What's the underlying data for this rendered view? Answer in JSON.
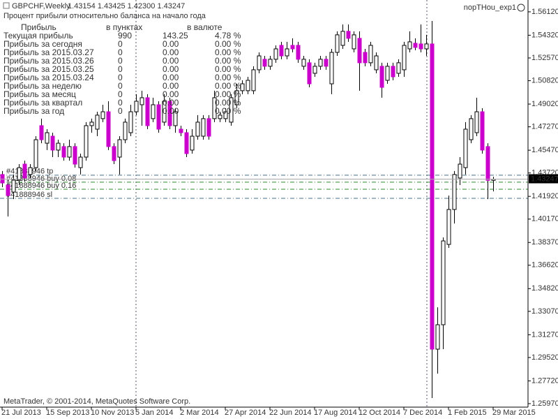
{
  "header": {
    "symbol": "GBPCHF,Weekly",
    "quote": "1.43154 1.43425 1.42300 1.43247",
    "subtitle": "Процент прибыли относительно баланса на начало года",
    "expert": "nopTHou_exp1"
  },
  "panel": {
    "headers": [
      "Прибыль",
      "в пунктах",
      "в валюте"
    ],
    "rows": [
      [
        "Текущая прибыль",
        "990",
        "143.25",
        "4.78 %"
      ],
      [
        "Прибыль за сегодня",
        "0",
        "0.00",
        "0.00 %"
      ],
      [
        "Прибыль за 2015.03.27",
        "0",
        "0.00",
        "0.00 %"
      ],
      [
        "Прибыль за 2015.03.26",
        "0",
        "0.00",
        "0.00 %"
      ],
      [
        "Прибыль за 2015.03.25",
        "0",
        "0.00",
        "0.00 %"
      ],
      [
        "Прибыль за 2015.03.24",
        "0",
        "0.00",
        "0.00 %"
      ],
      [
        "Прибыль за неделю",
        "0",
        "0.00",
        "0.00 %"
      ],
      [
        "Прибыль за месяц",
        "0",
        "0.00",
        "0.00 %"
      ],
      [
        "Прибыль за квартал",
        "0",
        "0.00",
        "0.00 %"
      ],
      [
        "Прибыль за год",
        "0",
        "0.00",
        "0.00 %"
      ]
    ],
    "highlight_color": "#008000",
    "color": "#7f7f7f"
  },
  "footer": "MetaTrader, © 2001-2014, MetaQuotes Software Corp.",
  "chart_data": {
    "type": "candlestick",
    "up_color": "#ffffff",
    "down_color": "#cc00cc",
    "categories": [
      "21 Jul 2013",
      null,
      null,
      null,
      null,
      null,
      null,
      null,
      "15 Sep 2013",
      null,
      null,
      null,
      null,
      null,
      null,
      null,
      "10 Nov 2013",
      null,
      null,
      null,
      null,
      null,
      null,
      null,
      "5 Jan 2014",
      null,
      null,
      null,
      null,
      null,
      null,
      null,
      "2 Mar 2014",
      null,
      null,
      null,
      null,
      null,
      null,
      null,
      "27 Apr 2014",
      null,
      null,
      null,
      null,
      null,
      null,
      null,
      "22 Jun 2014",
      null,
      null,
      null,
      null,
      null,
      null,
      null,
      "17 Aug 2014",
      null,
      null,
      null,
      null,
      null,
      null,
      null,
      "12 Oct 2014",
      null,
      null,
      null,
      null,
      null,
      null,
      null,
      "7 Dec 2014",
      null,
      null,
      null,
      null,
      null,
      null,
      null,
      "1 Feb 2015",
      null,
      null,
      null,
      null,
      null,
      null,
      null,
      "29 Mar 2015"
    ],
    "open": [
      1.436,
      1.4279,
      1.4225,
      1.4317,
      1.444,
      1.436,
      1.4413,
      1.4736,
      1.4601,
      1.4655,
      1.4548,
      1.4575,
      1.4494,
      1.4575,
      1.4413,
      1.4494,
      1.4736,
      1.4709,
      1.479,
      1.4843,
      1.4575,
      1.4494,
      1.4628,
      1.4682,
      1.4843,
      1.4897,
      1.4951,
      1.479,
      1.4897,
      1.4763,
      1.4924,
      1.4736,
      1.4709,
      1.4682,
      1.4548,
      1.4655,
      1.4655,
      1.479,
      1.479,
      1.479,
      1.479,
      1.4763,
      1.4897,
      1.5005,
      1.5005,
      1.5005,
      1.5166,
      1.5247,
      1.5193,
      1.5247,
      1.5354,
      1.5273,
      1.5354,
      1.5354,
      1.5193,
      1.522,
      1.5139,
      1.5193,
      1.5247,
      1.5058,
      1.53,
      1.5354,
      1.5462,
      1.5327,
      1.5408,
      1.53,
      1.522,
      1.5166,
      1.5193,
      1.5085,
      1.5193,
      1.5139,
      1.5166,
      1.5327,
      1.537,
      1.5365,
      1.5327,
      1.5365,
      1.3016,
      1.3204,
      1.3822,
      1.4091,
      1.4333,
      1.4413,
      1.4628,
      1.4682,
      1.4843,
      1.4575,
      1.43154
    ],
    "high": [
      1.4387,
      1.4317,
      1.436,
      1.444,
      1.4467,
      1.444,
      1.4655,
      1.479,
      1.4709,
      1.4682,
      1.4628,
      1.4601,
      1.4628,
      1.4601,
      1.4521,
      1.4763,
      1.479,
      1.4843,
      1.4897,
      1.4924,
      1.4601,
      1.4655,
      1.479,
      1.4897,
      1.4978,
      1.5005,
      1.4978,
      1.4951,
      1.4924,
      1.4978,
      1.4951,
      1.487,
      1.4736,
      1.4709,
      1.4709,
      1.4817,
      1.4817,
      1.4817,
      1.5005,
      1.4843,
      1.487,
      1.4978,
      1.5058,
      1.5085,
      1.5112,
      1.5193,
      1.53,
      1.5273,
      1.5273,
      1.5354,
      1.5381,
      1.5381,
      1.5408,
      1.5381,
      1.5273,
      1.5247,
      1.522,
      1.5273,
      1.5273,
      1.5327,
      1.5462,
      1.5515,
      1.5515,
      1.5462,
      1.5462,
      1.5327,
      1.5381,
      1.53,
      1.522,
      1.522,
      1.522,
      1.5247,
      1.5381,
      1.5462,
      1.5408,
      1.5515,
      1.5435,
      1.5542,
      1.3338,
      1.3876,
      1.4198,
      1.4387,
      1.4494,
      1.4763,
      1.4817,
      1.4951,
      1.487,
      1.4601,
      1.43425
    ],
    "low": [
      1.4263,
      1.4037,
      1.4171,
      1.4279,
      1.4306,
      1.4333,
      1.4387,
      1.4601,
      1.4548,
      1.4494,
      1.4494,
      1.4467,
      1.4467,
      1.4413,
      1.436,
      1.4467,
      1.4682,
      1.4655,
      1.4763,
      1.4548,
      1.444,
      1.436,
      1.4601,
      1.4655,
      1.4817,
      1.4736,
      1.4709,
      1.4763,
      1.4682,
      1.4736,
      1.4709,
      1.4682,
      1.4655,
      1.4494,
      1.4521,
      1.4628,
      1.4628,
      1.4628,
      1.4763,
      1.4763,
      1.4763,
      1.4736,
      1.487,
      1.4978,
      1.4978,
      1.4978,
      1.5139,
      1.5166,
      1.5166,
      1.522,
      1.5247,
      1.5247,
      1.53,
      1.522,
      1.5166,
      1.5031,
      1.5112,
      1.5166,
      1.5166,
      1.4978,
      1.5273,
      1.5327,
      1.5381,
      1.53,
      1.5005,
      1.5193,
      1.5193,
      1.5139,
      1.4951,
      1.5058,
      1.5085,
      1.5112,
      1.5112,
      1.53,
      1.5316,
      1.53,
      1.5273,
      1.264,
      1.2828,
      1.3016,
      1.3795,
      1.3983,
      1.4279,
      1.436,
      1.4601,
      1.4655,
      1.4521,
      1.4171,
      1.423
    ],
    "close": [
      1.4295,
      1.4198,
      1.4317,
      1.4413,
      1.4333,
      1.4413,
      1.4628,
      1.4628,
      1.4682,
      1.4548,
      1.4601,
      1.4494,
      1.4575,
      1.444,
      1.4494,
      1.4736,
      1.4763,
      1.4817,
      1.4843,
      1.4575,
      1.4467,
      1.4628,
      1.4763,
      1.4843,
      1.4924,
      1.4951,
      1.4736,
      1.4897,
      1.4709,
      1.4924,
      1.4736,
      1.4843,
      1.4682,
      1.4521,
      1.4655,
      1.4763,
      1.479,
      1.4655,
      1.4951,
      1.4817,
      1.4843,
      1.4951,
      1.5005,
      1.5058,
      1.5085,
      1.5166,
      1.5273,
      1.5193,
      1.5247,
      1.5327,
      1.5273,
      1.5327,
      1.5327,
      1.5247,
      1.5247,
      1.5058,
      1.5193,
      1.5247,
      1.5193,
      1.53,
      1.5435,
      1.5462,
      1.5408,
      1.5435,
      1.522,
      1.522,
      1.5354,
      1.5273,
      1.5031,
      1.5193,
      1.5112,
      1.522,
      1.5354,
      1.5381,
      1.5338,
      1.5327,
      1.5365,
      1.3016,
      1.3204,
      1.3849,
      1.4091,
      1.436,
      1.444,
      1.4709,
      1.479,
      1.4843,
      1.4548,
      1.43154,
      1.43247
    ],
    "ylim": [
      1.257,
      1.5703
    ],
    "yticks": [
      {
        "value": 1.5612,
        "label": "1.56120"
      },
      {
        "value": 1.5432,
        "label": "1.54320"
      },
      {
        "value": 1.5257,
        "label": "1.52570"
      },
      {
        "value": 1.5082,
        "label": "1.50820"
      },
      {
        "value": 1.4902,
        "label": "1.49020"
      },
      {
        "value": 1.4727,
        "label": "1.47270"
      },
      {
        "value": 1.4547,
        "label": "1.45470"
      },
      {
        "value": 1.4372,
        "label": "1.43720"
      },
      {
        "value": 1.4192,
        "label": "1.41920"
      },
      {
        "value": 1.4017,
        "label": "1.40170"
      },
      {
        "value": 1.3837,
        "label": "1.38370"
      },
      {
        "value": 1.3662,
        "label": "1.36620"
      },
      {
        "value": 1.3482,
        "label": "1.34820"
      },
      {
        "value": 1.3307,
        "label": "1.33070"
      },
      {
        "value": 1.3127,
        "label": "1.31270"
      },
      {
        "value": 1.2952,
        "label": "1.29520"
      },
      {
        "value": 1.2772,
        "label": "1.27720"
      },
      {
        "value": 1.2597,
        "label": "1.25970"
      }
    ],
    "bid": 1.43247,
    "order_lines": [
      {
        "label": "#41888946 tp",
        "value": 1.4355,
        "color": "#4a6f8a"
      },
      {
        "label": "#41888946 buy 0.08",
        "value": 1.4301,
        "color": "#2e8b2e"
      },
      {
        "label": "#41888946 buy 0.16",
        "value": 1.4247,
        "color": "#2e8b2e"
      },
      {
        "label": "#41888946 sl",
        "value": 1.4177,
        "color": "#4a6f8a"
      }
    ]
  }
}
